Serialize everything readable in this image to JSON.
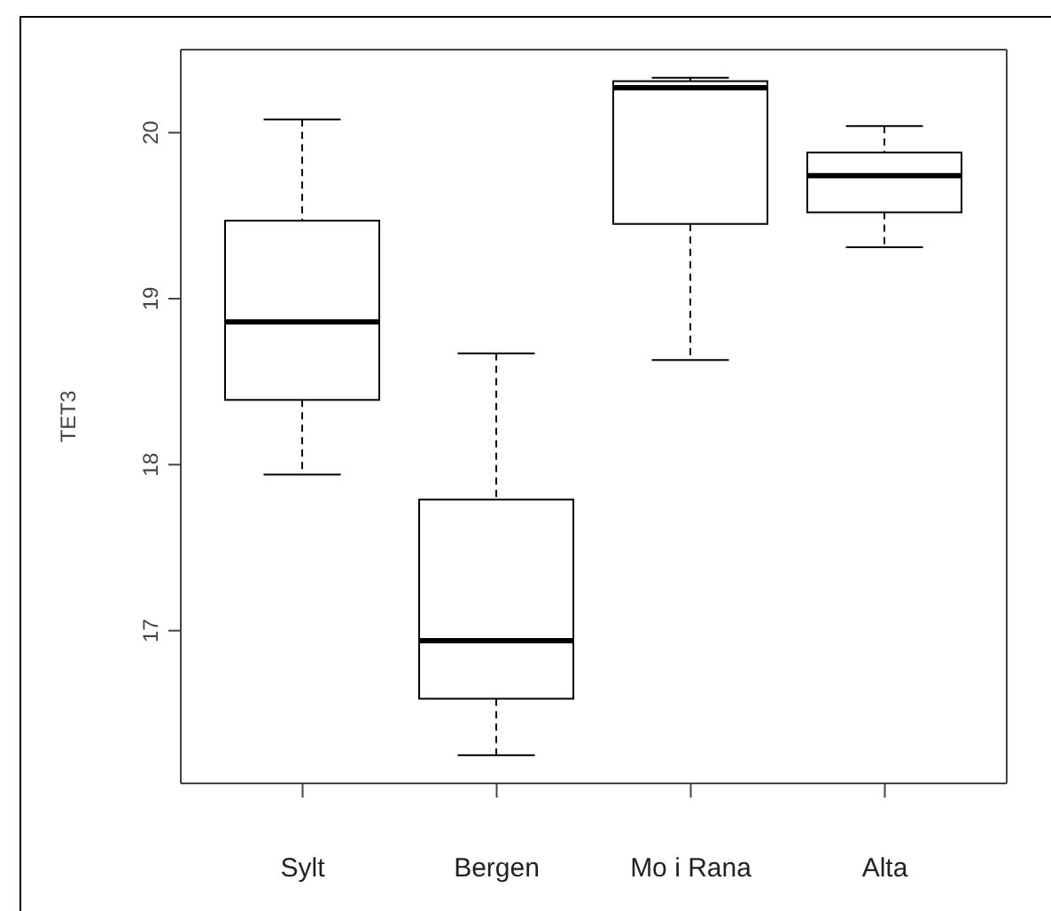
{
  "chart_data": {
    "type": "box",
    "ylabel": "TET3",
    "categories": [
      "Sylt",
      "Bergen",
      "Mo i Rana",
      "Alta"
    ],
    "boxes": [
      {
        "low": 17.94,
        "q1": 18.39,
        "median": 18.86,
        "q3": 19.47,
        "high": 20.08
      },
      {
        "low": 16.25,
        "q1": 16.59,
        "median": 16.94,
        "q3": 17.79,
        "high": 18.67
      },
      {
        "low": 18.63,
        "q1": 19.45,
        "median": 20.27,
        "q3": 20.31,
        "high": 20.33
      },
      {
        "low": 19.31,
        "q1": 19.52,
        "median": 19.74,
        "q3": 19.88,
        "high": 20.04
      }
    ],
    "color": "#000000",
    "ylim": [
      16.08,
      20.5
    ],
    "yticks": [
      17,
      18,
      19,
      20
    ]
  }
}
